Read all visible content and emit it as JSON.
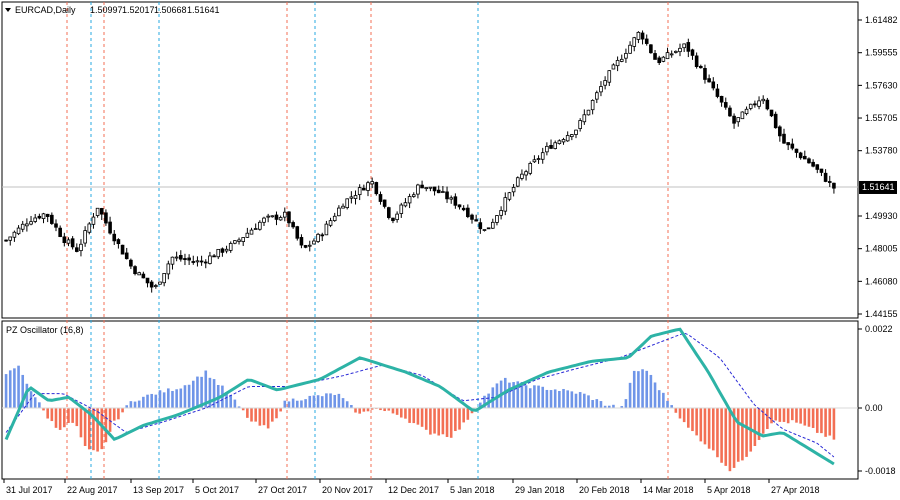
{
  "header": {
    "symbol_label": "EURCAD,Daily",
    "ohlc": [
      "1.50997",
      "1.52017",
      "1.50668",
      "1.51641"
    ]
  },
  "price_panel": {
    "axis_ticks": [
      1.61482,
      1.59555,
      1.5763,
      1.55705,
      1.5378,
      1.4993,
      1.48005,
      1.4608,
      1.44155
    ],
    "axis_tick_labels": [
      "1.61482",
      "1.59555",
      "1.57630",
      "1.55705",
      "1.53780",
      "1.49930",
      "1.48005",
      "1.46080",
      "1.44155"
    ],
    "y_range": [
      1.44155,
      1.62
    ],
    "current_price": 1.51641,
    "current_price_label": "1.51641",
    "line_color": "#c0c0c0",
    "bull_color": "#ffffff",
    "bear_color": "#000000"
  },
  "oscillator_panel": {
    "title": "PZ Oscillator (16,8)",
    "axis_ticks": [
      0.0022,
      0.0,
      -0.0018
    ],
    "axis_tick_labels": [
      "0.0022",
      "0.00",
      "-0.0018"
    ],
    "y_range": [
      -0.0019,
      0.0023
    ],
    "hist_pos_color": "#6f95e8",
    "hist_neg_color": "#f36f54",
    "main_line_color": "#2db3a6",
    "signal_line_color": "#2a2ad6"
  },
  "time_axis": {
    "labels": [
      "31 Jul 2017",
      "22 Aug 2017",
      "13 Sep 2017",
      "5 Oct 2017",
      "27 Oct 2017",
      "20 Nov 2017",
      "12 Dec 2017",
      "5 Jan 2018",
      "29 Jan 2018",
      "20 Feb 2018",
      "14 Mar 2018",
      "5 Apr 2018",
      "27 Apr 2018"
    ]
  },
  "chart_data": {
    "type": "candlestick",
    "bar_count": 200,
    "price_anchors": [
      [
        0,
        1.485
      ],
      [
        8,
        1.497
      ],
      [
        14,
        1.501
      ],
      [
        20,
        1.486
      ],
      [
        25,
        1.479
      ],
      [
        32,
        1.505
      ],
      [
        36,
        1.492
      ],
      [
        44,
        1.469
      ],
      [
        52,
        1.456
      ],
      [
        58,
        1.475
      ],
      [
        68,
        1.472
      ],
      [
        80,
        1.483
      ],
      [
        90,
        1.497
      ],
      [
        98,
        1.5
      ],
      [
        104,
        1.479
      ],
      [
        110,
        1.488
      ],
      [
        118,
        1.507
      ],
      [
        128,
        1.52
      ],
      [
        135,
        1.497
      ],
      [
        145,
        1.518
      ],
      [
        152,
        1.513
      ],
      [
        160,
        1.504
      ],
      [
        168,
        1.49
      ],
      [
        180,
        1.522
      ],
      [
        190,
        1.54
      ],
      [
        200,
        1.551
      ],
      [
        210,
        1.58
      ],
      [
        222,
        1.608
      ],
      [
        228,
        1.59
      ],
      [
        238,
        1.6
      ],
      [
        246,
        1.578
      ],
      [
        255,
        1.554
      ],
      [
        265,
        1.57
      ],
      [
        272,
        1.543
      ],
      [
        282,
        1.53
      ],
      [
        290,
        1.516
      ]
    ],
    "oscillator_main_anchors": [
      [
        0,
        -0.0009
      ],
      [
        8,
        0.0006
      ],
      [
        15,
        0.0002
      ],
      [
        22,
        0.0003
      ],
      [
        30,
        -0.0002
      ],
      [
        38,
        -0.0009
      ],
      [
        48,
        -0.0005
      ],
      [
        60,
        -0.0002
      ],
      [
        75,
        0.0003
      ],
      [
        85,
        0.0008
      ],
      [
        95,
        0.0005
      ],
      [
        110,
        0.0008
      ],
      [
        124,
        0.0014
      ],
      [
        140,
        0.001
      ],
      [
        152,
        0.0006
      ],
      [
        164,
        -0.0001
      ],
      [
        176,
        0.0005
      ],
      [
        190,
        0.001
      ],
      [
        205,
        0.0013
      ],
      [
        218,
        0.0014
      ],
      [
        226,
        0.002
      ],
      [
        236,
        0.0022
      ],
      [
        246,
        0.001
      ],
      [
        256,
        -0.0004
      ],
      [
        265,
        -0.0008
      ],
      [
        272,
        -0.0007
      ],
      [
        282,
        -0.0012
      ],
      [
        290,
        -0.0016
      ]
    ],
    "oscillator_signal_anchors": [
      [
        0,
        -0.0007
      ],
      [
        10,
        0.0004
      ],
      [
        20,
        0.0004
      ],
      [
        32,
        -0.0001
      ],
      [
        42,
        -0.0007
      ],
      [
        55,
        -0.0004
      ],
      [
        70,
        0.0
      ],
      [
        85,
        0.0006
      ],
      [
        100,
        0.0006
      ],
      [
        118,
        0.0009
      ],
      [
        132,
        0.0012
      ],
      [
        146,
        0.0009
      ],
      [
        160,
        0.0002
      ],
      [
        172,
        0.0003
      ],
      [
        186,
        0.0008
      ],
      [
        200,
        0.0011
      ],
      [
        215,
        0.0014
      ],
      [
        228,
        0.0018
      ],
      [
        238,
        0.0021
      ],
      [
        250,
        0.0014
      ],
      [
        262,
        0.0001
      ],
      [
        272,
        -0.0006
      ],
      [
        284,
        -0.001
      ],
      [
        290,
        -0.0014
      ]
    ],
    "histogram_anchors": [
      [
        0,
        0.0009
      ],
      [
        4,
        0.0012
      ],
      [
        8,
        0.0006
      ],
      [
        14,
        -0.0002
      ],
      [
        18,
        -0.0006
      ],
      [
        24,
        -0.0004
      ],
      [
        28,
        -0.0012
      ],
      [
        33,
        -0.0013
      ],
      [
        38,
        -0.0004
      ],
      [
        44,
        0.0002
      ],
      [
        52,
        0.0004
      ],
      [
        62,
        0.0006
      ],
      [
        70,
        0.001
      ],
      [
        78,
        0.0004
      ],
      [
        86,
        -0.0004
      ],
      [
        92,
        -0.0006
      ],
      [
        98,
        0.0002
      ],
      [
        106,
        0.0003
      ],
      [
        116,
        0.0004
      ],
      [
        124,
        -0.0002
      ],
      [
        128,
        0.0
      ],
      [
        138,
        -0.0002
      ],
      [
        148,
        -0.0007
      ],
      [
        156,
        -0.0008
      ],
      [
        160,
        -0.0005
      ],
      [
        166,
        0.0002
      ],
      [
        174,
        0.0008
      ],
      [
        184,
        0.0006
      ],
      [
        194,
        0.0005
      ],
      [
        202,
        0.0004
      ],
      [
        210,
        0.0001
      ],
      [
        216,
        0.0
      ],
      [
        220,
        0.001
      ],
      [
        224,
        0.0011
      ],
      [
        230,
        0.0004
      ],
      [
        234,
        0.0
      ],
      [
        238,
        -0.0005
      ],
      [
        246,
        -0.0011
      ],
      [
        254,
        -0.0018
      ],
      [
        260,
        -0.0013
      ],
      [
        268,
        -0.0004
      ],
      [
        276,
        -0.0004
      ],
      [
        282,
        -0.0006
      ],
      [
        290,
        -0.0009
      ]
    ]
  }
}
